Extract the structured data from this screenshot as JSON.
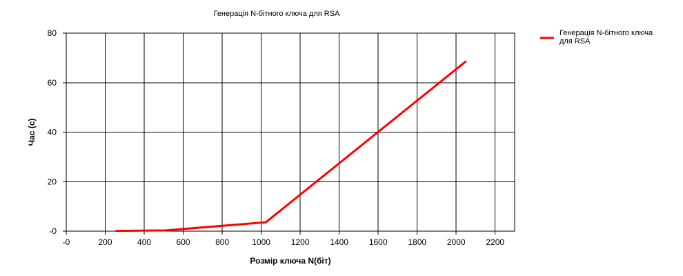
{
  "chart_data": {
    "type": "line",
    "title": "Генерація N-бітного ключа для RSA",
    "xlabel": "Розмір ключа N(біт)",
    "ylabel": "Час (с)",
    "xlim": [
      0,
      2300
    ],
    "ylim": [
      0,
      80
    ],
    "x_ticks": [
      0,
      200,
      400,
      600,
      800,
      1000,
      1200,
      1400,
      1600,
      1800,
      2000,
      2200
    ],
    "x_tick_labels": [
      "-0",
      "200",
      "400",
      "600",
      "800",
      "1000",
      "1200",
      "1400",
      "1600",
      "1800",
      "2000",
      "2200"
    ],
    "y_ticks": [
      0,
      20,
      40,
      60,
      80
    ],
    "y_tick_labels": [
      "-0",
      "20",
      "40",
      "60",
      "80"
    ],
    "grid": true,
    "legend_position": "top-right",
    "series": [
      {
        "name": "Генерація N-бітного ключа для RSA",
        "legend_lines": [
          "Генерація N-бітного ключа",
          "для RSA"
        ],
        "color": "#ff0000",
        "x": [
          256,
          512,
          1024,
          2048
        ],
        "y": [
          0.1,
          0.3,
          3.6,
          68.5
        ]
      }
    ]
  }
}
